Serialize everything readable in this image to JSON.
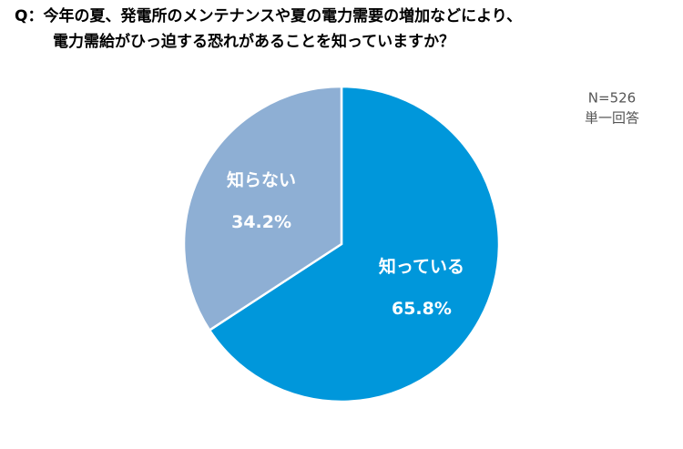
{
  "chart_data": {
    "type": "pie",
    "title_lines": [
      "Q：今年の夏、発電所のメンテナンスや夏の電力需要の増加などにより、",
      "電力需給がひっ迫する恐れがあることを知っていますか？"
    ],
    "annotations": [
      "N=526",
      "単一回答"
    ],
    "categories": [
      "知っている",
      "知らない"
    ],
    "values": [
      65.8,
      34.2
    ],
    "value_labels": [
      "65.8%",
      "34.2%"
    ],
    "colors": [
      "#0097db",
      "#8eafd4"
    ]
  }
}
